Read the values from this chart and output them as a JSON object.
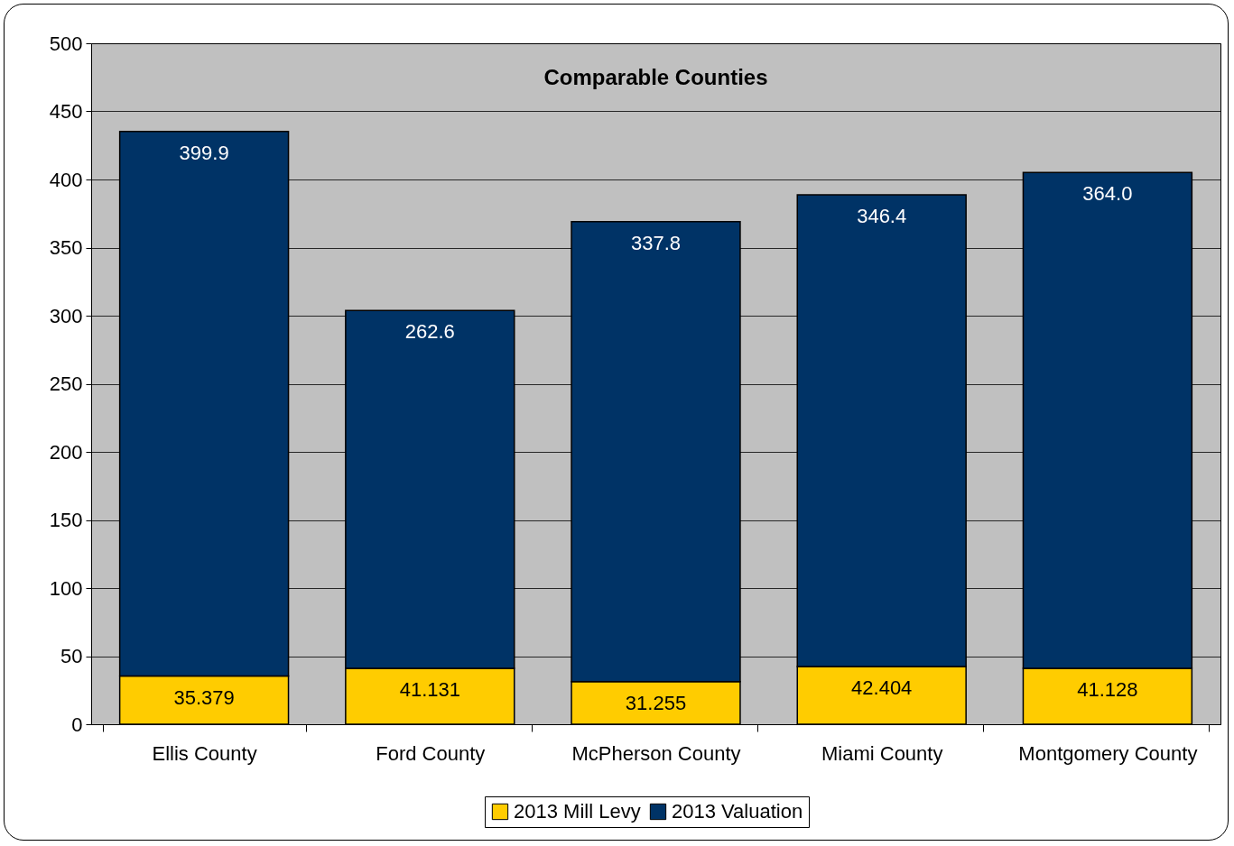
{
  "chart_data": {
    "type": "bar",
    "title": "Comparable Counties",
    "stacked": true,
    "categories": [
      "Ellis County",
      "Ford County",
      "McPherson County",
      "Miami County",
      "Montgomery County"
    ],
    "series": [
      {
        "name": "2013 Mill Levy",
        "color": "#ffcc00",
        "values": [
          35.379,
          41.131,
          31.255,
          42.404,
          41.128
        ]
      },
      {
        "name": "2013 Valuation",
        "color": "#003366",
        "values": [
          399.9,
          262.6,
          337.8,
          346.4,
          364.0
        ],
        "value_labels": [
          "399.9",
          "262.6",
          "337.8",
          "346.4",
          "364.0"
        ]
      }
    ],
    "ylim": [
      0,
      500
    ],
    "yticks": [
      0,
      50,
      100,
      150,
      200,
      250,
      300,
      350,
      400,
      450,
      500
    ],
    "grid": "y",
    "legend": "bottom",
    "data_labels": true
  }
}
